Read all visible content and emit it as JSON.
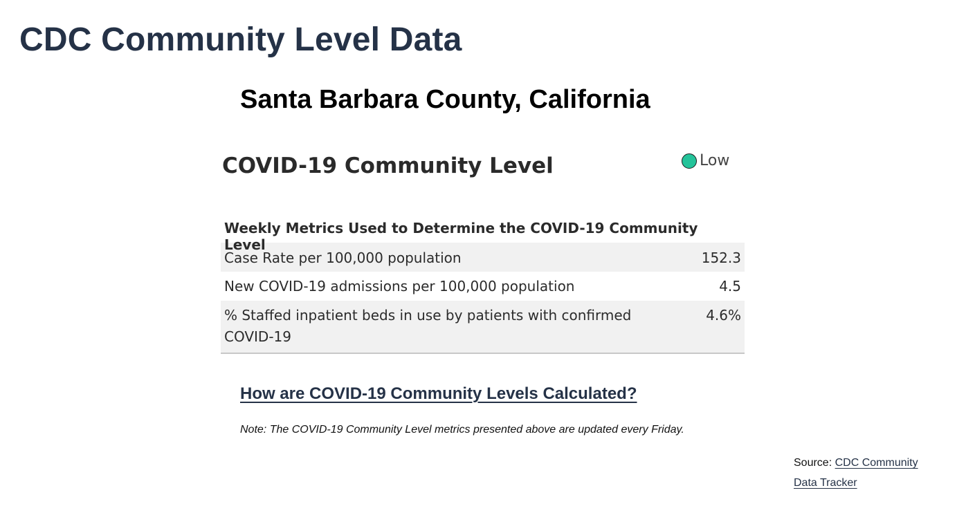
{
  "page": {
    "title": "CDC Community Level Data"
  },
  "county": {
    "title": "Santa Barbara County, California"
  },
  "community_level": {
    "heading": "COVID-19 Community Level",
    "level_label": "Low",
    "level_color": "#24c39a"
  },
  "metrics": {
    "heading": "Weekly Metrics Used to Determine the COVID-19 Community Level",
    "rows": [
      {
        "label": "Case Rate per 100,000 population",
        "value": "152.3"
      },
      {
        "label": "New COVID-19 admissions per 100,000 population",
        "value": "4.5"
      },
      {
        "label": "% Staffed inpatient beds in use by patients with confirmed COVID-19",
        "value": "4.6%"
      }
    ]
  },
  "calculation_link": {
    "label": "How are COVID-19 Community Levels Calculated?"
  },
  "note": {
    "text": "Note: The COVID-19 Community Level metrics presented above are updated every Friday."
  },
  "source": {
    "prefix": "Source: ",
    "link_label": "CDC Community Data Tracker"
  }
}
